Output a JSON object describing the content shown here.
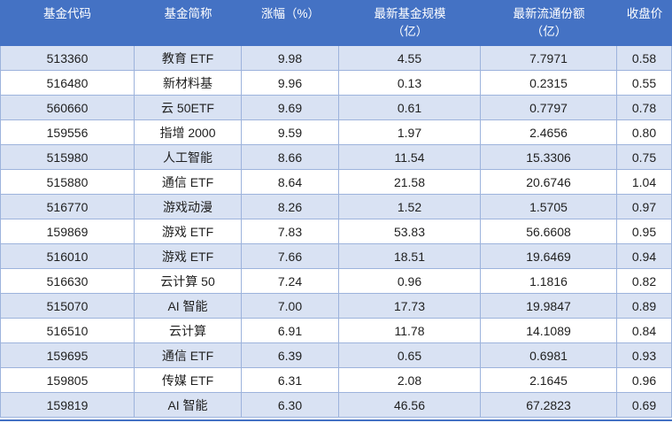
{
  "colors": {
    "header_bg": "#4472C4",
    "header_text": "#FFFFFF",
    "stripe": "#D9E2F3",
    "border": "#9DB3DC",
    "bottom_line": "#4472C4",
    "text": "#1F1F1F"
  },
  "table": {
    "header_lines": [
      [
        "基金代码"
      ],
      [
        "基金简称"
      ],
      [
        "涨幅（%）"
      ],
      [
        "最新基金规模",
        "（亿）"
      ],
      [
        "最新流通份额",
        "（亿）"
      ],
      [
        "收盘价"
      ]
    ]
  },
  "chart_data": {
    "type": "table",
    "columns": [
      "基金代码",
      "基金简称",
      "涨幅（%）",
      "最新基金规模（亿）",
      "最新流通份额（亿）",
      "收盘价"
    ],
    "rows": [
      [
        "513360",
        "教育 ETF",
        "9.98",
        "4.55",
        "7.7971",
        "0.58"
      ],
      [
        "516480",
        "新材料基",
        "9.96",
        "0.13",
        "0.2315",
        "0.55"
      ],
      [
        "560660",
        "云 50ETF",
        "9.69",
        "0.61",
        "0.7797",
        "0.78"
      ],
      [
        "159556",
        "指增 2000",
        "9.59",
        "1.97",
        "2.4656",
        "0.80"
      ],
      [
        "515980",
        "人工智能",
        "8.66",
        "11.54",
        "15.3306",
        "0.75"
      ],
      [
        "515880",
        "通信 ETF",
        "8.64",
        "21.58",
        "20.6746",
        "1.04"
      ],
      [
        "516770",
        "游戏动漫",
        "8.26",
        "1.52",
        "1.5705",
        "0.97"
      ],
      [
        "159869",
        "游戏 ETF",
        "7.83",
        "53.83",
        "56.6608",
        "0.95"
      ],
      [
        "516010",
        "游戏 ETF",
        "7.66",
        "18.51",
        "19.6469",
        "0.94"
      ],
      [
        "516630",
        "云计算 50",
        "7.24",
        "0.96",
        "1.1816",
        "0.82"
      ],
      [
        "515070",
        "AI 智能",
        "7.00",
        "17.73",
        "19.9847",
        "0.89"
      ],
      [
        "516510",
        "云计算",
        "6.91",
        "11.78",
        "14.1089",
        "0.84"
      ],
      [
        "159695",
        "通信 ETF",
        "6.39",
        "0.65",
        "0.6981",
        "0.93"
      ],
      [
        "159805",
        "传媒 ETF",
        "6.31",
        "2.08",
        "2.1645",
        "0.96"
      ],
      [
        "159819",
        "AI 智能",
        "6.30",
        "46.56",
        "67.2823",
        "0.69"
      ]
    ]
  }
}
